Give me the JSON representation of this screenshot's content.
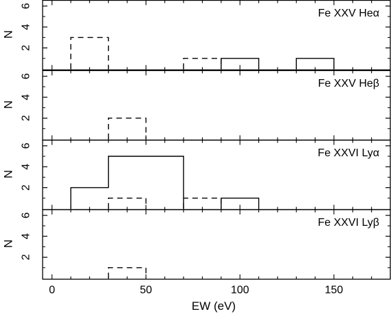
{
  "chart_data": {
    "type": "histogram",
    "xlabel": "EW (eV)",
    "ylabel": "N",
    "xlim": [
      -5,
      180
    ],
    "ylim": [
      0,
      7
    ],
    "x_ticks": [
      0,
      50,
      100,
      150
    ],
    "x_tick_labels": [
      "0",
      "50",
      "100",
      "150"
    ],
    "y_ticks": [
      2,
      4,
      6
    ],
    "y_tick_labels": [
      "2",
      "4",
      "6"
    ],
    "bin_width": 20,
    "panels": [
      {
        "label": "Fe XXV Heα",
        "series": [
          {
            "style": "solid",
            "bins": [
              {
                "x0": 90,
                "x1": 110,
                "count": 1
              },
              {
                "x0": 130,
                "x1": 150,
                "count": 1
              }
            ]
          },
          {
            "style": "dashed",
            "bins": [
              {
                "x0": 10,
                "x1": 30,
                "count": 3
              },
              {
                "x0": 70,
                "x1": 90,
                "count": 1
              }
            ]
          }
        ]
      },
      {
        "label": "Fe XXV Heβ",
        "series": [
          {
            "style": "solid",
            "bins": []
          },
          {
            "style": "dashed",
            "bins": [
              {
                "x0": 30,
                "x1": 50,
                "count": 2
              }
            ]
          }
        ]
      },
      {
        "label": "Fe XXVI Lyα",
        "series": [
          {
            "style": "solid",
            "bins": [
              {
                "x0": 10,
                "x1": 30,
                "count": 2
              },
              {
                "x0": 30,
                "x1": 50,
                "count": 5
              },
              {
                "x0": 50,
                "x1": 70,
                "count": 5
              },
              {
                "x0": 90,
                "x1": 110,
                "count": 1
              }
            ]
          },
          {
            "style": "dashed",
            "bins": [
              {
                "x0": 30,
                "x1": 50,
                "count": 1
              },
              {
                "x0": 70,
                "x1": 90,
                "count": 1
              }
            ]
          }
        ]
      },
      {
        "label": "Fe XXVI Lyβ",
        "series": [
          {
            "style": "solid",
            "bins": []
          },
          {
            "style": "dashed",
            "bins": [
              {
                "x0": 30,
                "x1": 50,
                "count": 1
              }
            ]
          }
        ]
      }
    ],
    "colors": {
      "line": "#000000",
      "background": "#ffffff"
    }
  }
}
